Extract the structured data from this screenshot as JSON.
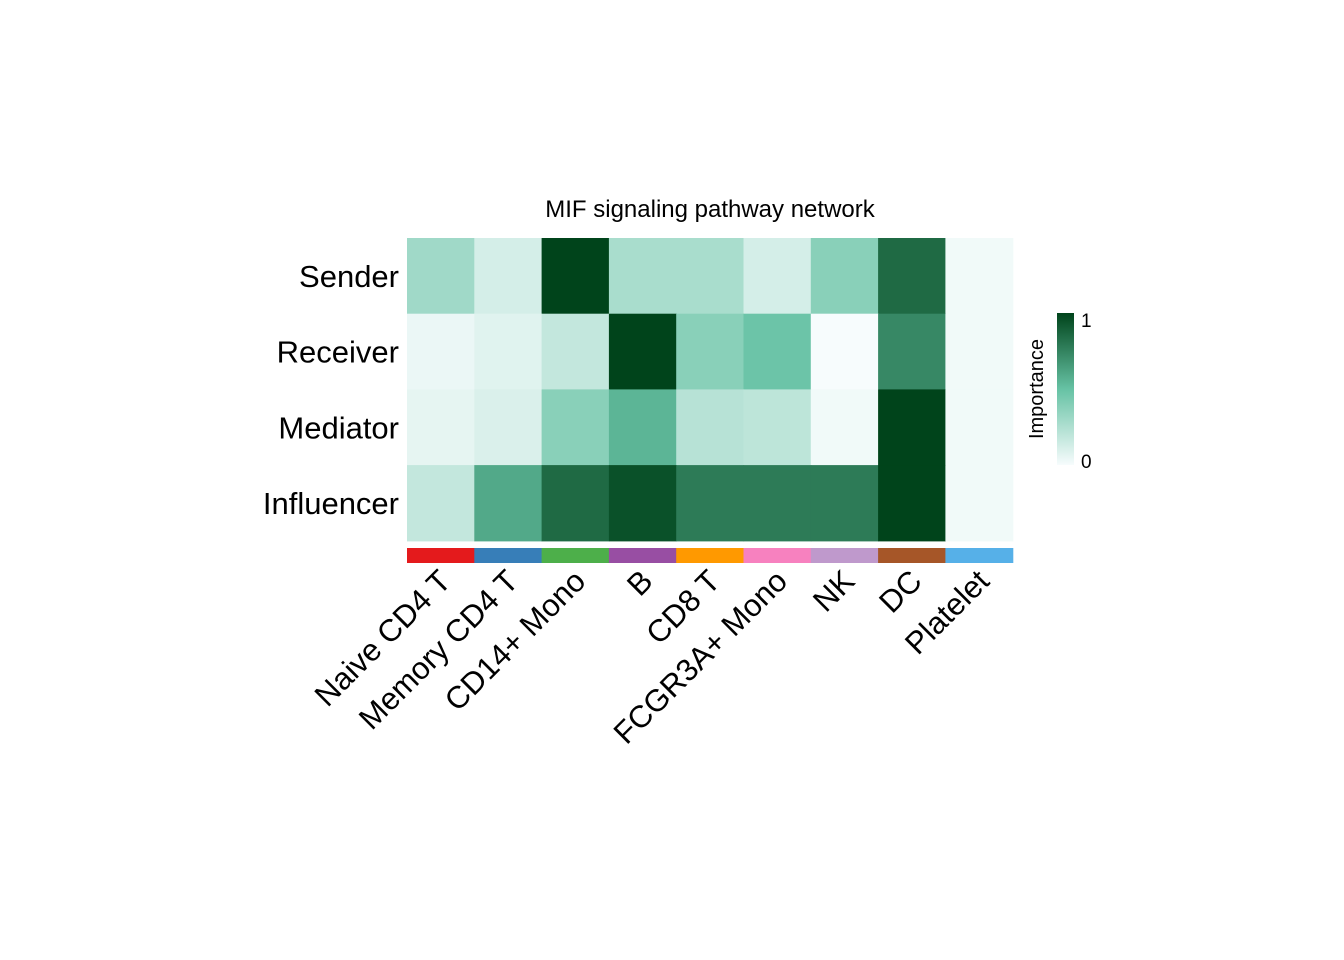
{
  "chart_data": {
    "type": "heatmap",
    "title": "MIF signaling pathway network",
    "rows": [
      "Sender",
      "Receiver",
      "Mediator",
      "Influencer"
    ],
    "columns": [
      "Naive CD4 T",
      "Memory CD4 T",
      "CD14+ Mono",
      "B",
      "CD8 T",
      "FCGR3A+ Mono",
      "NK",
      "DC",
      "Platelet"
    ],
    "column_colors": [
      "#e41a1c",
      "#377eb8",
      "#4daf4a",
      "#984ea3",
      "#ff9900",
      "#f781bf",
      "#bf99cc",
      "#a65628",
      "#56b0e8"
    ],
    "values": [
      [
        0.3,
        0.12,
        1.0,
        0.27,
        0.27,
        0.12,
        0.38,
        0.85,
        0.02
      ],
      [
        0.04,
        0.08,
        0.18,
        1.0,
        0.38,
        0.48,
        0.0,
        0.73,
        0.02
      ],
      [
        0.06,
        0.1,
        0.38,
        0.55,
        0.22,
        0.2,
        0.02,
        1.0,
        0.02
      ],
      [
        0.18,
        0.6,
        0.85,
        0.95,
        0.78,
        0.78,
        0.78,
        1.0,
        0.02
      ]
    ],
    "legend": {
      "title": "Importance",
      "min": 0,
      "max": 1,
      "min_label": "0",
      "max_label": "1",
      "placement": "right"
    },
    "colors": {
      "low": "#f7fcfd",
      "mid": "#66c2a4",
      "high": "#00441b"
    }
  }
}
